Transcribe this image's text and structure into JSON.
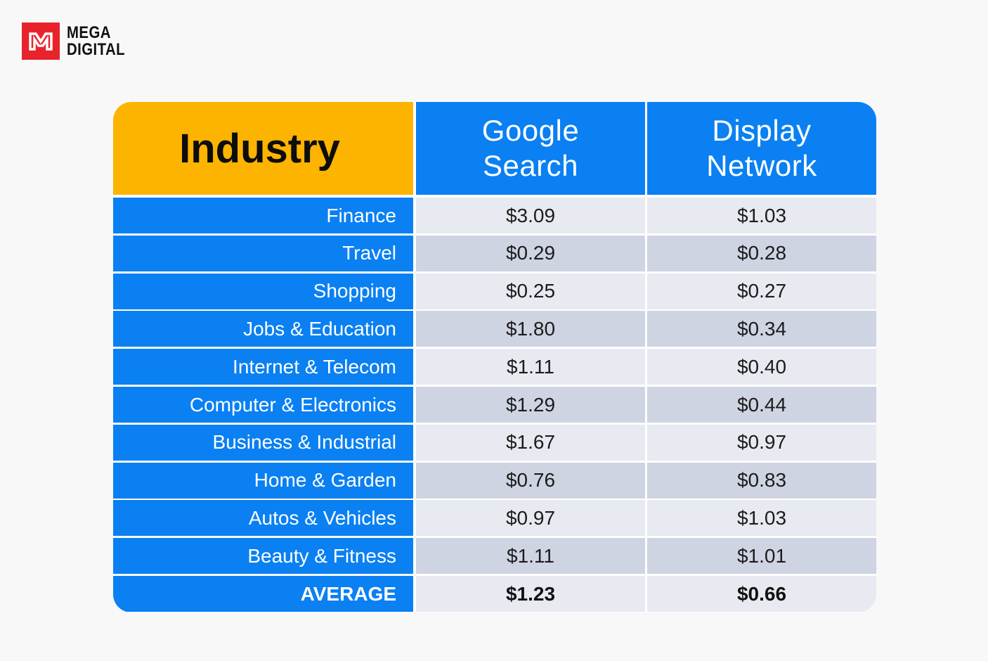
{
  "brand": {
    "line1": "MEGA",
    "line2": "DIGITAL",
    "color": "#e8232b"
  },
  "colors": {
    "header_industry": "#fdb400",
    "accent_blue": "#0a80f2",
    "row_light": "#e7eaf0",
    "row_dark": "#cfd4e3"
  },
  "chart_data": {
    "type": "table",
    "columns": [
      "Industry",
      "Google\nSearch",
      "Display\nNetwork"
    ],
    "rows": [
      {
        "industry": "Finance",
        "google_search": "$3.09",
        "display_network": "$1.03"
      },
      {
        "industry": "Travel",
        "google_search": "$0.29",
        "display_network": "$0.28"
      },
      {
        "industry": "Shopping",
        "google_search": "$0.25",
        "display_network": "$0.27"
      },
      {
        "industry": "Jobs & Education",
        "google_search": "$1.80",
        "display_network": "$0.34"
      },
      {
        "industry": "Internet & Telecom",
        "google_search": "$1.11",
        "display_network": "$0.40"
      },
      {
        "industry": "Computer & Electronics",
        "google_search": "$1.29",
        "display_network": "$0.44"
      },
      {
        "industry": "Business & Industrial",
        "google_search": "$1.67",
        "display_network": "$0.97"
      },
      {
        "industry": "Home & Garden",
        "google_search": "$0.76",
        "display_network": "$0.83"
      },
      {
        "industry": "Autos & Vehicles",
        "google_search": "$0.97",
        "display_network": "$1.03"
      },
      {
        "industry": "Beauty & Fitness",
        "google_search": "$1.11",
        "display_network": "$1.01"
      }
    ],
    "average": {
      "industry": "AVERAGE",
      "google_search": "$1.23",
      "display_network": "$0.66"
    }
  }
}
